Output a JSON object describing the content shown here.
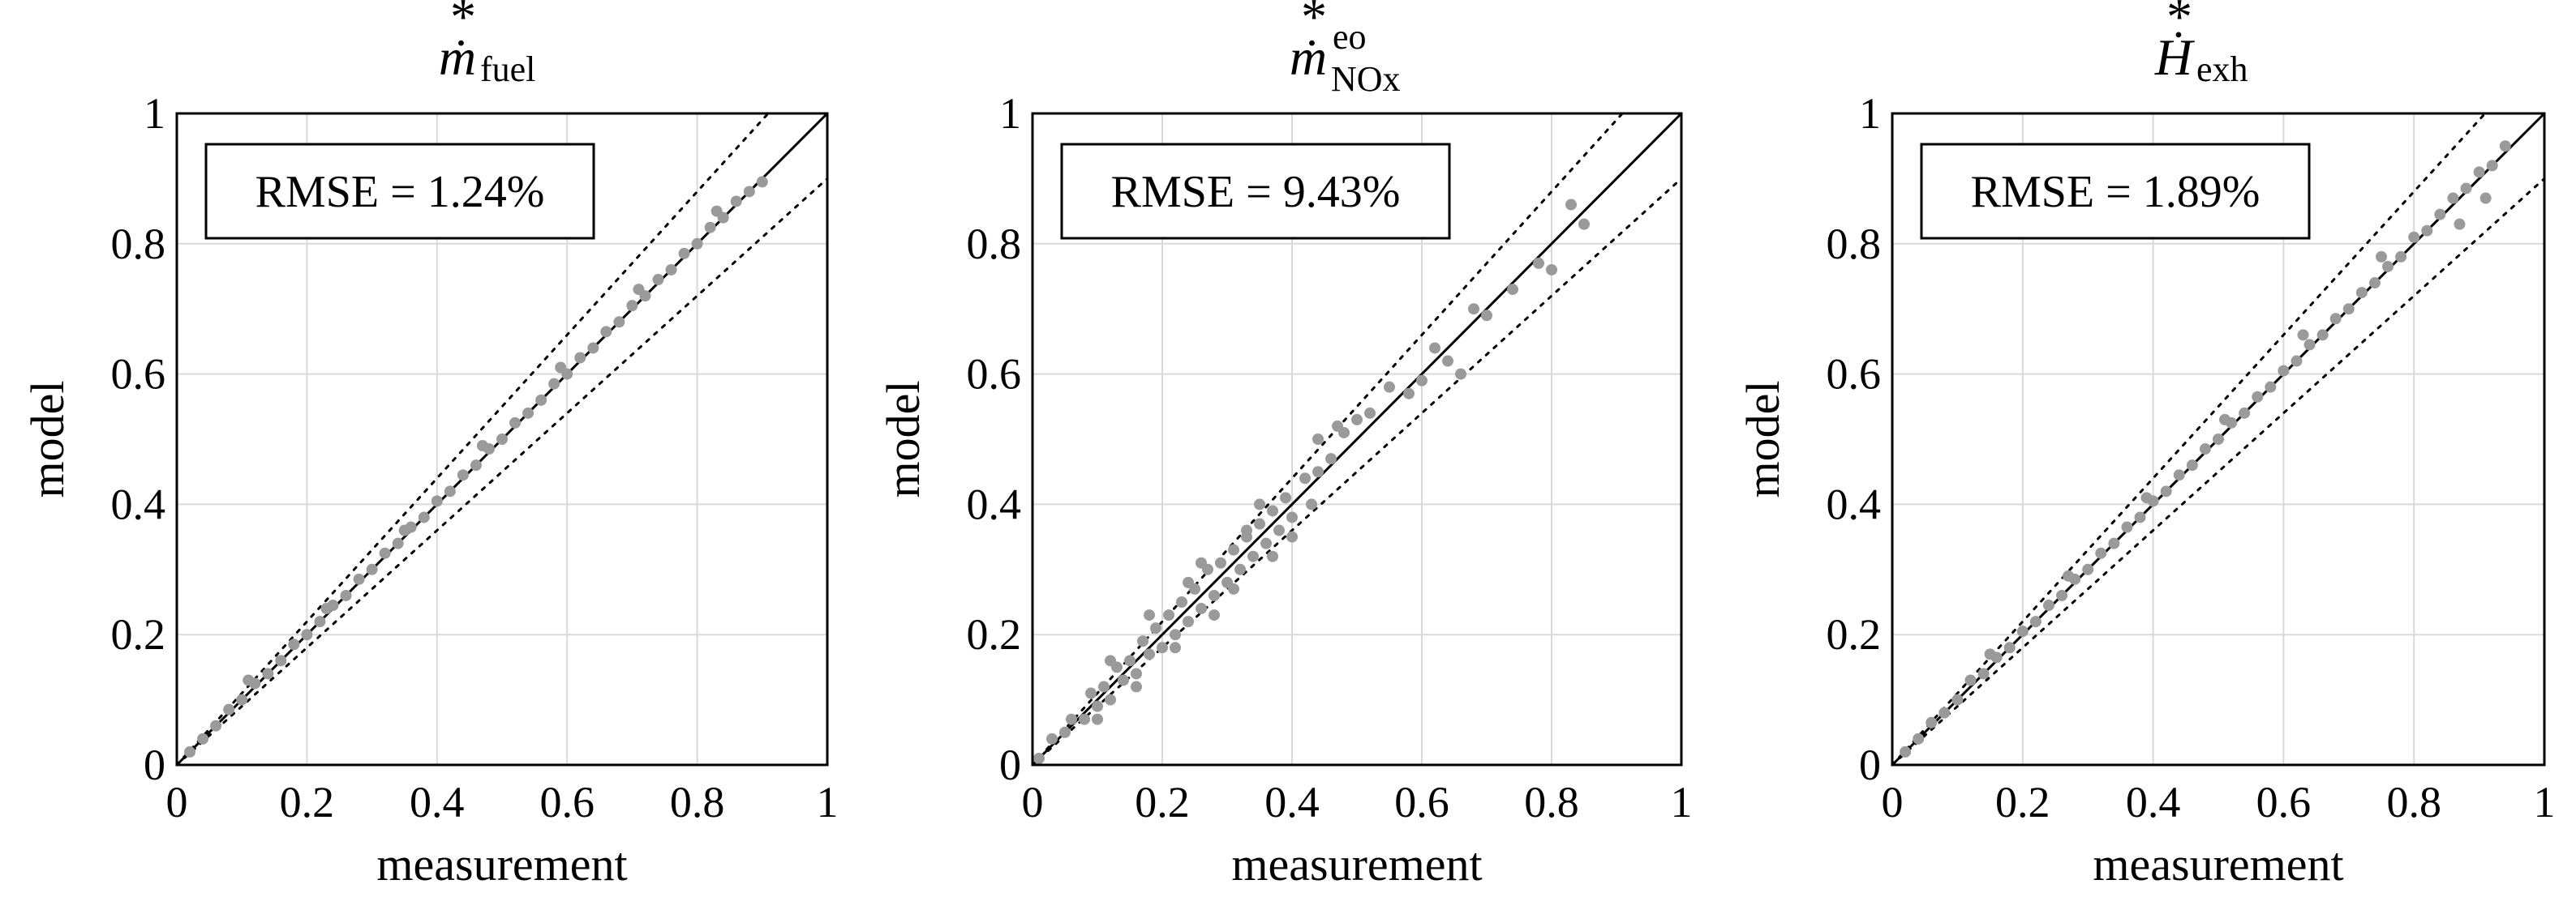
{
  "chart_data": [
    {
      "type": "scatter",
      "title": {
        "symbol": "ṁ",
        "star": "*",
        "superscript": "",
        "subscript": "fuel"
      },
      "xlabel": "measurement",
      "ylabel": "model",
      "xlim": [
        0,
        1
      ],
      "ylim": [
        0,
        1
      ],
      "ticks": [
        "0",
        "0.2",
        "0.4",
        "0.6",
        "0.8",
        "1"
      ],
      "tick_values": [
        0,
        0.2,
        0.4,
        0.6,
        0.8,
        1
      ],
      "grid": true,
      "reference_line": "y = x",
      "tolerance_band": 0.1,
      "annotation": "RMSE = 1.24%",
      "rmse_percent": 1.24,
      "series": [
        {
          "name": "ṁ*fuel",
          "color": "#9a9a9a",
          "x": [
            0.02,
            0.04,
            0.06,
            0.08,
            0.1,
            0.12,
            0.14,
            0.16,
            0.18,
            0.2,
            0.22,
            0.24,
            0.26,
            0.28,
            0.3,
            0.32,
            0.34,
            0.36,
            0.38,
            0.4,
            0.42,
            0.44,
            0.46,
            0.48,
            0.5,
            0.52,
            0.54,
            0.56,
            0.58,
            0.6,
            0.62,
            0.64,
            0.66,
            0.68,
            0.7,
            0.72,
            0.74,
            0.76,
            0.78,
            0.8,
            0.82,
            0.84,
            0.86,
            0.88,
            0.9,
            0.11,
            0.23,
            0.35,
            0.47,
            0.59,
            0.71,
            0.83
          ],
          "y": [
            0.02,
            0.04,
            0.06,
            0.085,
            0.1,
            0.125,
            0.14,
            0.16,
            0.185,
            0.2,
            0.22,
            0.245,
            0.26,
            0.285,
            0.3,
            0.325,
            0.34,
            0.365,
            0.38,
            0.405,
            0.42,
            0.445,
            0.46,
            0.485,
            0.5,
            0.525,
            0.54,
            0.56,
            0.585,
            0.6,
            0.625,
            0.64,
            0.665,
            0.68,
            0.705,
            0.72,
            0.745,
            0.76,
            0.785,
            0.8,
            0.825,
            0.84,
            0.865,
            0.88,
            0.895,
            0.13,
            0.24,
            0.36,
            0.49,
            0.61,
            0.73,
            0.85
          ]
        }
      ]
    },
    {
      "type": "scatter",
      "title": {
        "symbol": "ṁ",
        "star": "*",
        "superscript": "eo",
        "subscript": "NOx"
      },
      "xlabel": "measurement",
      "ylabel": "model",
      "xlim": [
        0,
        1
      ],
      "ylim": [
        0,
        1
      ],
      "ticks": [
        "0",
        "0.2",
        "0.4",
        "0.6",
        "0.8",
        "1"
      ],
      "tick_values": [
        0,
        0.2,
        0.4,
        0.6,
        0.8,
        1
      ],
      "grid": true,
      "reference_line": "y = x",
      "tolerance_band": 0.1,
      "annotation": "RMSE = 9.43%",
      "rmse_percent": 9.43,
      "series": [
        {
          "name": "ṁ*eo NOx",
          "color": "#9a9a9a",
          "x": [
            0.01,
            0.03,
            0.05,
            0.06,
            0.08,
            0.09,
            0.1,
            0.11,
            0.12,
            0.13,
            0.14,
            0.15,
            0.16,
            0.17,
            0.18,
            0.19,
            0.2,
            0.21,
            0.22,
            0.23,
            0.24,
            0.25,
            0.26,
            0.27,
            0.28,
            0.29,
            0.3,
            0.31,
            0.32,
            0.33,
            0.34,
            0.35,
            0.36,
            0.37,
            0.38,
            0.39,
            0.4,
            0.42,
            0.44,
            0.46,
            0.48,
            0.5,
            0.52,
            0.55,
            0.58,
            0.6,
            0.62,
            0.64,
            0.66,
            0.68,
            0.7,
            0.74,
            0.78,
            0.8,
            0.83,
            0.85,
            0.12,
            0.18,
            0.22,
            0.26,
            0.31,
            0.35,
            0.4,
            0.44,
            0.1,
            0.16,
            0.24,
            0.28,
            0.33,
            0.37,
            0.43,
            0.47
          ],
          "y": [
            0.01,
            0.04,
            0.05,
            0.07,
            0.07,
            0.11,
            0.09,
            0.12,
            0.1,
            0.15,
            0.13,
            0.16,
            0.14,
            0.19,
            0.17,
            0.21,
            0.18,
            0.23,
            0.2,
            0.25,
            0.22,
            0.27,
            0.24,
            0.3,
            0.26,
            0.31,
            0.28,
            0.33,
            0.3,
            0.35,
            0.32,
            0.37,
            0.34,
            0.39,
            0.36,
            0.41,
            0.38,
            0.44,
            0.45,
            0.47,
            0.51,
            0.53,
            0.54,
            0.58,
            0.57,
            0.59,
            0.64,
            0.62,
            0.6,
            0.7,
            0.69,
            0.73,
            0.77,
            0.76,
            0.86,
            0.83,
            0.16,
            0.23,
            0.18,
            0.31,
            0.27,
            0.4,
            0.35,
            0.5,
            0.07,
            0.12,
            0.28,
            0.23,
            0.36,
            0.32,
            0.4,
            0.52
          ]
        }
      ]
    },
    {
      "type": "scatter",
      "title": {
        "symbol": "Ḣ",
        "star": "*",
        "superscript": "",
        "subscript": "exh"
      },
      "xlabel": "measurement",
      "ylabel": "model",
      "xlim": [
        0,
        1
      ],
      "ylim": [
        0,
        1
      ],
      "ticks": [
        "0",
        "0.2",
        "0.4",
        "0.6",
        "0.8",
        "1"
      ],
      "tick_values": [
        0,
        0.2,
        0.4,
        0.6,
        0.8,
        1
      ],
      "grid": true,
      "reference_line": "y = x",
      "tolerance_band": 0.1,
      "annotation": "RMSE = 1.89%",
      "rmse_percent": 1.89,
      "series": [
        {
          "name": "Ḣ*exh",
          "color": "#9a9a9a",
          "x": [
            0.02,
            0.04,
            0.06,
            0.08,
            0.1,
            0.12,
            0.14,
            0.16,
            0.18,
            0.2,
            0.22,
            0.24,
            0.26,
            0.28,
            0.3,
            0.32,
            0.34,
            0.36,
            0.38,
            0.4,
            0.42,
            0.44,
            0.46,
            0.48,
            0.5,
            0.52,
            0.54,
            0.56,
            0.58,
            0.6,
            0.62,
            0.64,
            0.66,
            0.68,
            0.7,
            0.72,
            0.74,
            0.76,
            0.78,
            0.8,
            0.82,
            0.84,
            0.86,
            0.88,
            0.9,
            0.92,
            0.94,
            0.15,
            0.27,
            0.39,
            0.51,
            0.63,
            0.75,
            0.87,
            0.91
          ],
          "y": [
            0.02,
            0.04,
            0.065,
            0.08,
            0.1,
            0.13,
            0.14,
            0.165,
            0.18,
            0.205,
            0.22,
            0.245,
            0.26,
            0.285,
            0.3,
            0.325,
            0.34,
            0.365,
            0.38,
            0.405,
            0.42,
            0.445,
            0.46,
            0.485,
            0.5,
            0.525,
            0.54,
            0.565,
            0.58,
            0.605,
            0.62,
            0.645,
            0.66,
            0.685,
            0.7,
            0.725,
            0.74,
            0.765,
            0.78,
            0.81,
            0.82,
            0.845,
            0.87,
            0.885,
            0.91,
            0.92,
            0.95,
            0.17,
            0.29,
            0.41,
            0.53,
            0.66,
            0.78,
            0.83,
            0.87
          ]
        }
      ]
    }
  ]
}
